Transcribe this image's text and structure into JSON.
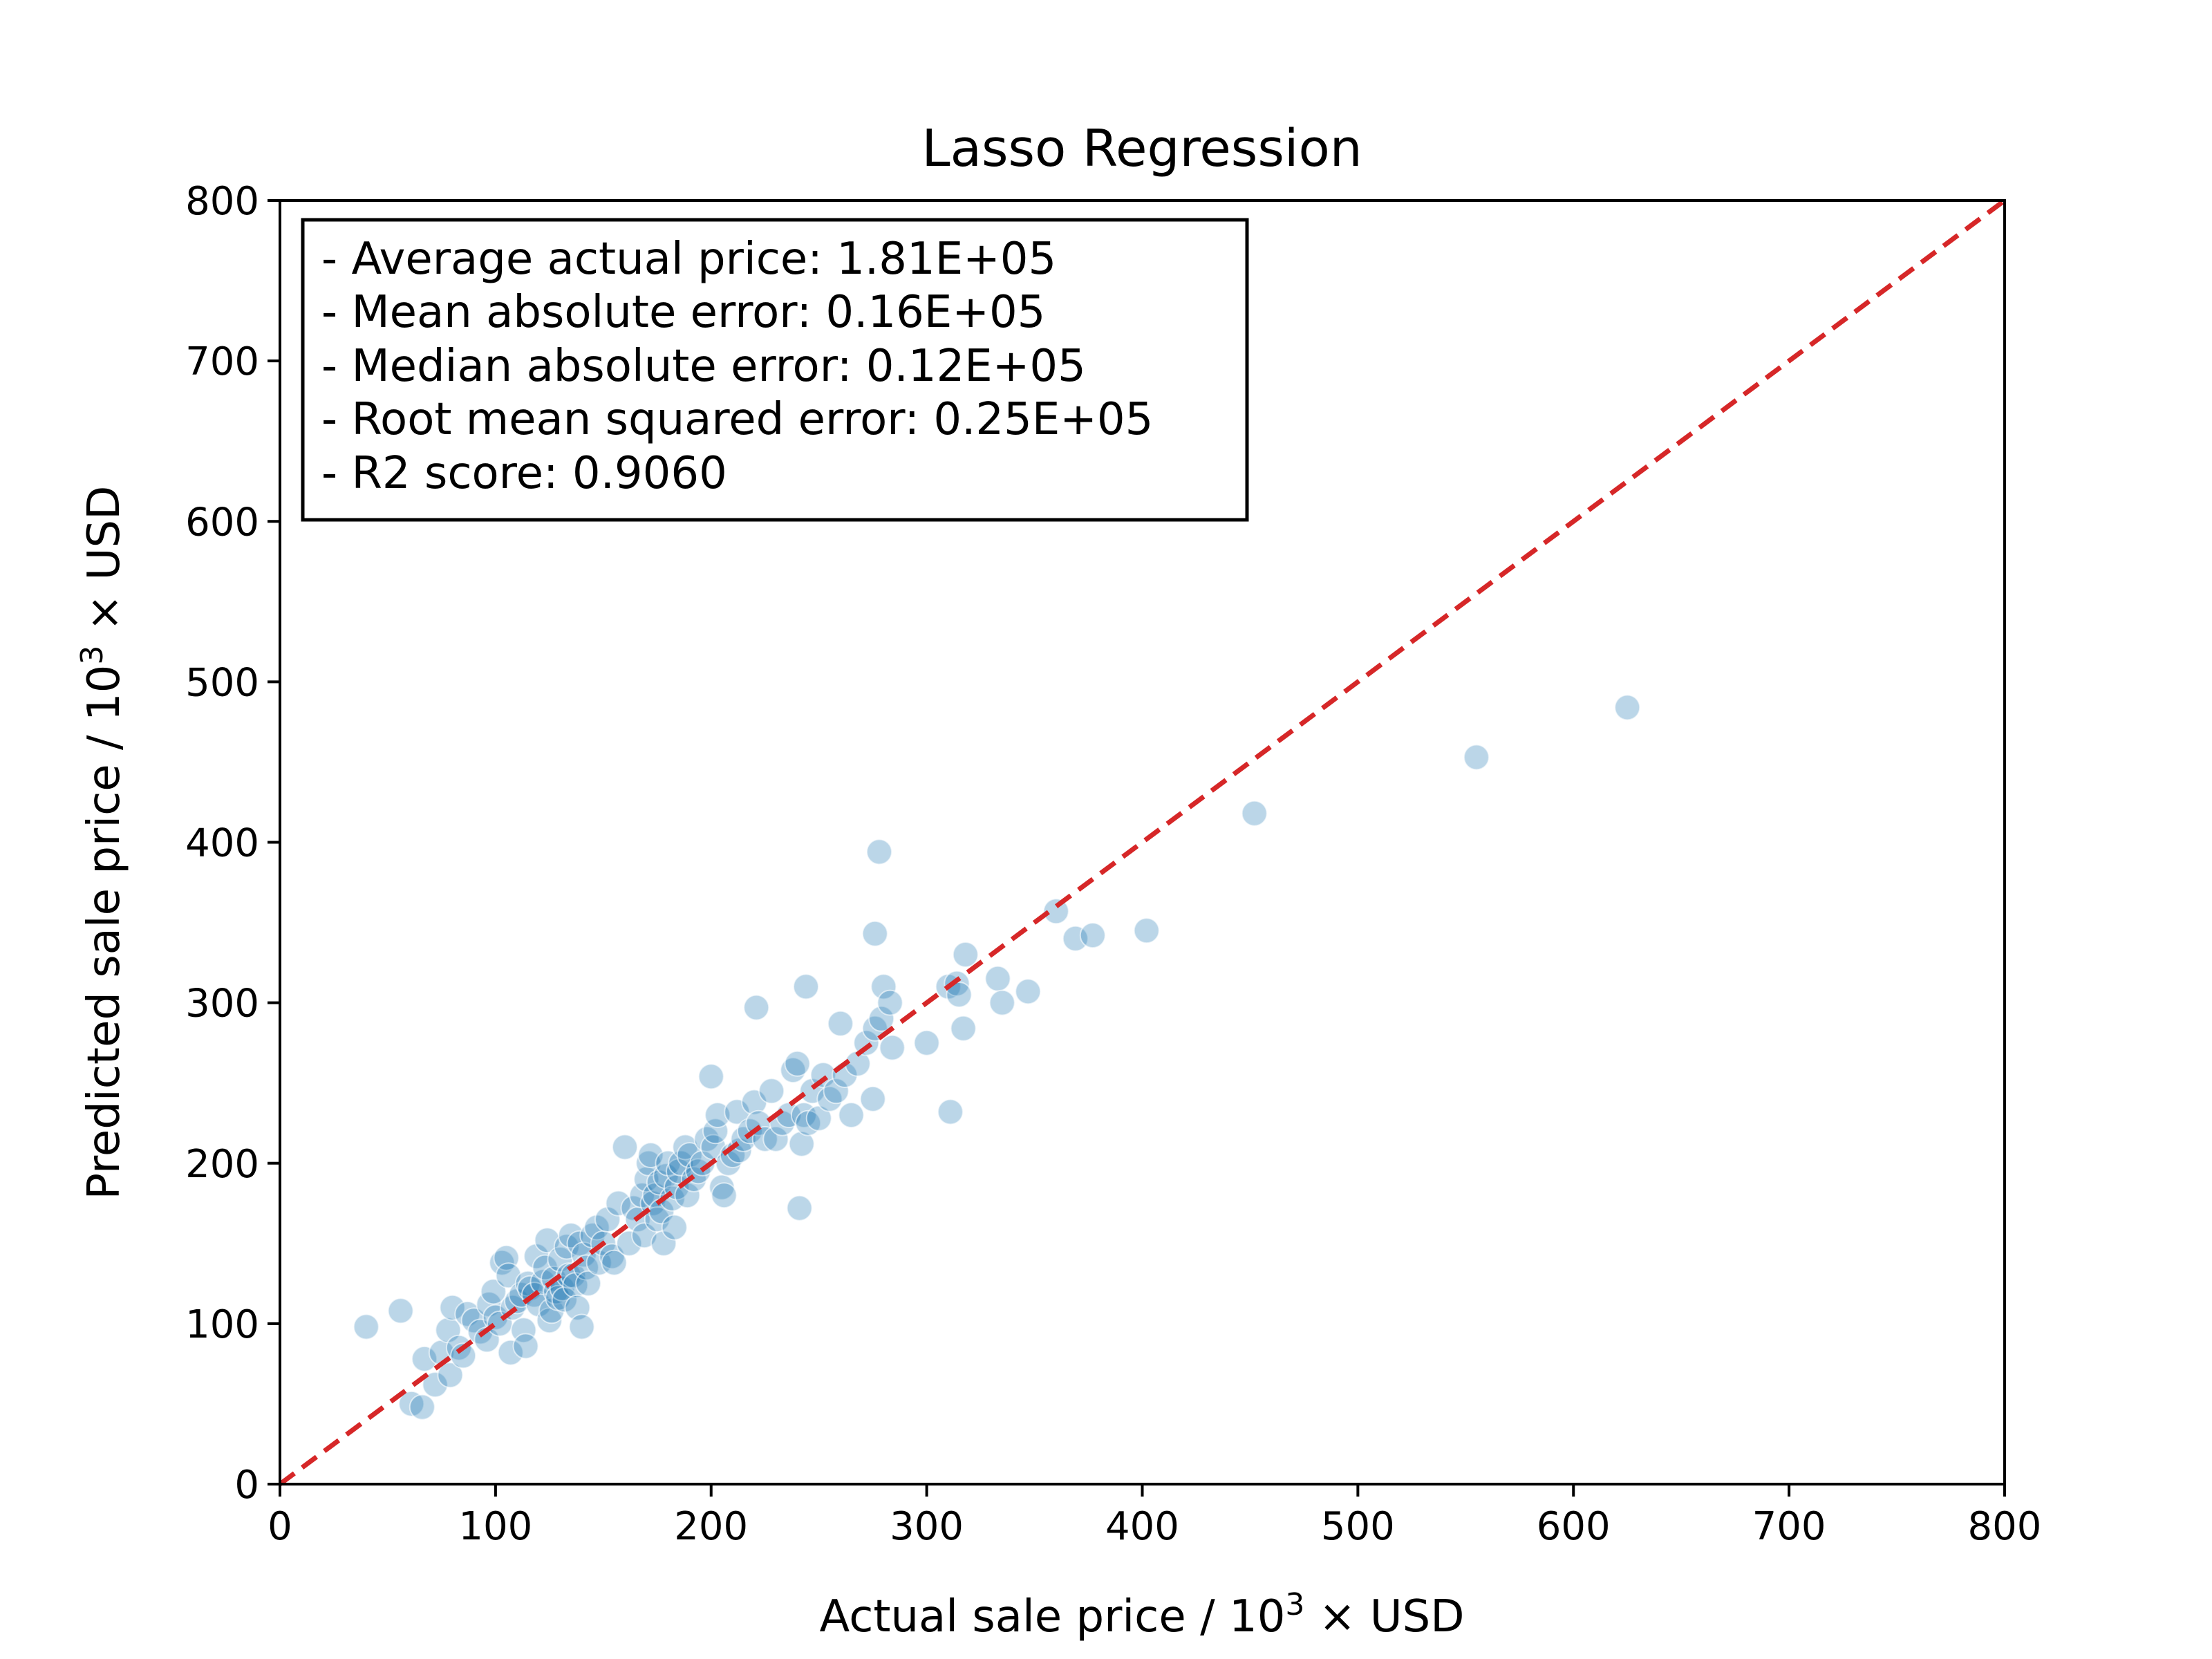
{
  "chart_data": {
    "type": "scatter",
    "title": "Lasso Regression",
    "xlabel": {
      "prefix": "Actual sale price / 10",
      "sup": "3",
      "suffix": " × USD"
    },
    "ylabel": {
      "prefix": "Predicted sale price / 10",
      "sup": "3",
      "suffix": " × USD"
    },
    "xlim": [
      0,
      800
    ],
    "ylim": [
      0,
      800
    ],
    "xticks": [
      "0",
      "100",
      "200",
      "300",
      "400",
      "500",
      "600",
      "700",
      "800"
    ],
    "yticks": [
      "0",
      "100",
      "200",
      "300",
      "400",
      "500",
      "600",
      "700",
      "800"
    ],
    "grid": false,
    "reference_line": {
      "from": [
        0,
        0
      ],
      "to": [
        800,
        800
      ],
      "style": "dashed",
      "color": "#d62728"
    },
    "point_color": "#1f77b4",
    "stats_box": {
      "placement": "top-left",
      "lines": [
        "- Average actual price: 1.81E+05",
        "- Mean absolute error: 0.16E+05",
        "- Median absolute error: 0.12E+05",
        "- Root mean squared error: 0.25E+05",
        "- R2 score: 0.9060"
      ]
    },
    "points": [
      [
        40,
        98
      ],
      [
        56,
        108
      ],
      [
        61,
        50
      ],
      [
        66,
        48
      ],
      [
        67,
        78
      ],
      [
        72,
        62
      ],
      [
        75,
        82
      ],
      [
        78,
        96
      ],
      [
        79,
        68
      ],
      [
        80,
        110
      ],
      [
        83,
        85
      ],
      [
        85,
        80
      ],
      [
        87,
        106
      ],
      [
        90,
        102
      ],
      [
        93,
        95
      ],
      [
        96,
        90
      ],
      [
        97,
        112
      ],
      [
        99,
        120
      ],
      [
        100,
        104
      ],
      [
        102,
        100
      ],
      [
        103,
        138
      ],
      [
        105,
        141
      ],
      [
        106,
        130
      ],
      [
        107,
        82
      ],
      [
        108,
        110
      ],
      [
        110,
        114
      ],
      [
        112,
        118
      ],
      [
        113,
        96
      ],
      [
        114,
        86
      ],
      [
        115,
        125
      ],
      [
        116,
        122
      ],
      [
        118,
        118
      ],
      [
        119,
        142
      ],
      [
        120,
        112
      ],
      [
        122,
        126
      ],
      [
        123,
        135
      ],
      [
        124,
        152
      ],
      [
        125,
        102
      ],
      [
        126,
        108
      ],
      [
        127,
        128
      ],
      [
        128,
        120
      ],
      [
        129,
        116
      ],
      [
        130,
        140
      ],
      [
        131,
        122
      ],
      [
        132,
        115
      ],
      [
        133,
        148
      ],
      [
        134,
        130
      ],
      [
        135,
        155
      ],
      [
        136,
        130
      ],
      [
        137,
        124
      ],
      [
        138,
        110
      ],
      [
        139,
        150
      ],
      [
        140,
        98
      ],
      [
        141,
        143
      ],
      [
        142,
        135
      ],
      [
        143,
        125
      ],
      [
        145,
        155
      ],
      [
        147,
        160
      ],
      [
        148,
        138
      ],
      [
        150,
        150
      ],
      [
        152,
        165
      ],
      [
        154,
        142
      ],
      [
        155,
        138
      ],
      [
        157,
        175
      ],
      [
        160,
        210
      ],
      [
        162,
        150
      ],
      [
        164,
        172
      ],
      [
        166,
        165
      ],
      [
        168,
        180
      ],
      [
        169,
        155
      ],
      [
        170,
        190
      ],
      [
        171,
        200
      ],
      [
        172,
        205
      ],
      [
        173,
        175
      ],
      [
        174,
        180
      ],
      [
        175,
        165
      ],
      [
        176,
        188
      ],
      [
        177,
        170
      ],
      [
        178,
        150
      ],
      [
        179,
        192
      ],
      [
        180,
        200
      ],
      [
        182,
        178
      ],
      [
        183,
        160
      ],
      [
        184,
        185
      ],
      [
        185,
        195
      ],
      [
        186,
        200
      ],
      [
        188,
        210
      ],
      [
        189,
        180
      ],
      [
        190,
        205
      ],
      [
        192,
        190
      ],
      [
        194,
        195
      ],
      [
        196,
        200
      ],
      [
        198,
        215
      ],
      [
        200,
        254
      ],
      [
        201,
        210
      ],
      [
        202,
        220
      ],
      [
        203,
        230
      ],
      [
        205,
        185
      ],
      [
        206,
        180
      ],
      [
        208,
        200
      ],
      [
        210,
        205
      ],
      [
        212,
        232
      ],
      [
        213,
        208
      ],
      [
        215,
        215
      ],
      [
        218,
        220
      ],
      [
        220,
        238
      ],
      [
        221,
        297
      ],
      [
        222,
        225
      ],
      [
        225,
        215
      ],
      [
        228,
        245
      ],
      [
        230,
        215
      ],
      [
        233,
        225
      ],
      [
        236,
        230
      ],
      [
        238,
        258
      ],
      [
        240,
        262
      ],
      [
        241,
        172
      ],
      [
        242,
        212
      ],
      [
        243,
        230
      ],
      [
        244,
        310
      ],
      [
        245,
        225
      ],
      [
        247,
        245
      ],
      [
        250,
        228
      ],
      [
        252,
        255
      ],
      [
        255,
        240
      ],
      [
        258,
        245
      ],
      [
        260,
        287
      ],
      [
        262,
        255
      ],
      [
        265,
        230
      ],
      [
        268,
        262
      ],
      [
        272,
        275
      ],
      [
        275,
        240
      ],
      [
        276,
        343
      ],
      [
        276,
        284
      ],
      [
        278,
        394
      ],
      [
        279,
        290
      ],
      [
        280,
        310
      ],
      [
        283,
        300
      ],
      [
        284,
        272
      ],
      [
        300,
        275
      ],
      [
        310,
        310
      ],
      [
        311,
        232
      ],
      [
        314,
        312
      ],
      [
        315,
        305
      ],
      [
        317,
        284
      ],
      [
        318,
        330
      ],
      [
        333,
        315
      ],
      [
        335,
        300
      ],
      [
        347,
        307
      ],
      [
        360,
        357
      ],
      [
        369,
        340
      ],
      [
        377,
        342
      ],
      [
        402,
        345
      ],
      [
        452,
        418
      ],
      [
        555,
        453
      ],
      [
        625,
        484
      ]
    ]
  }
}
